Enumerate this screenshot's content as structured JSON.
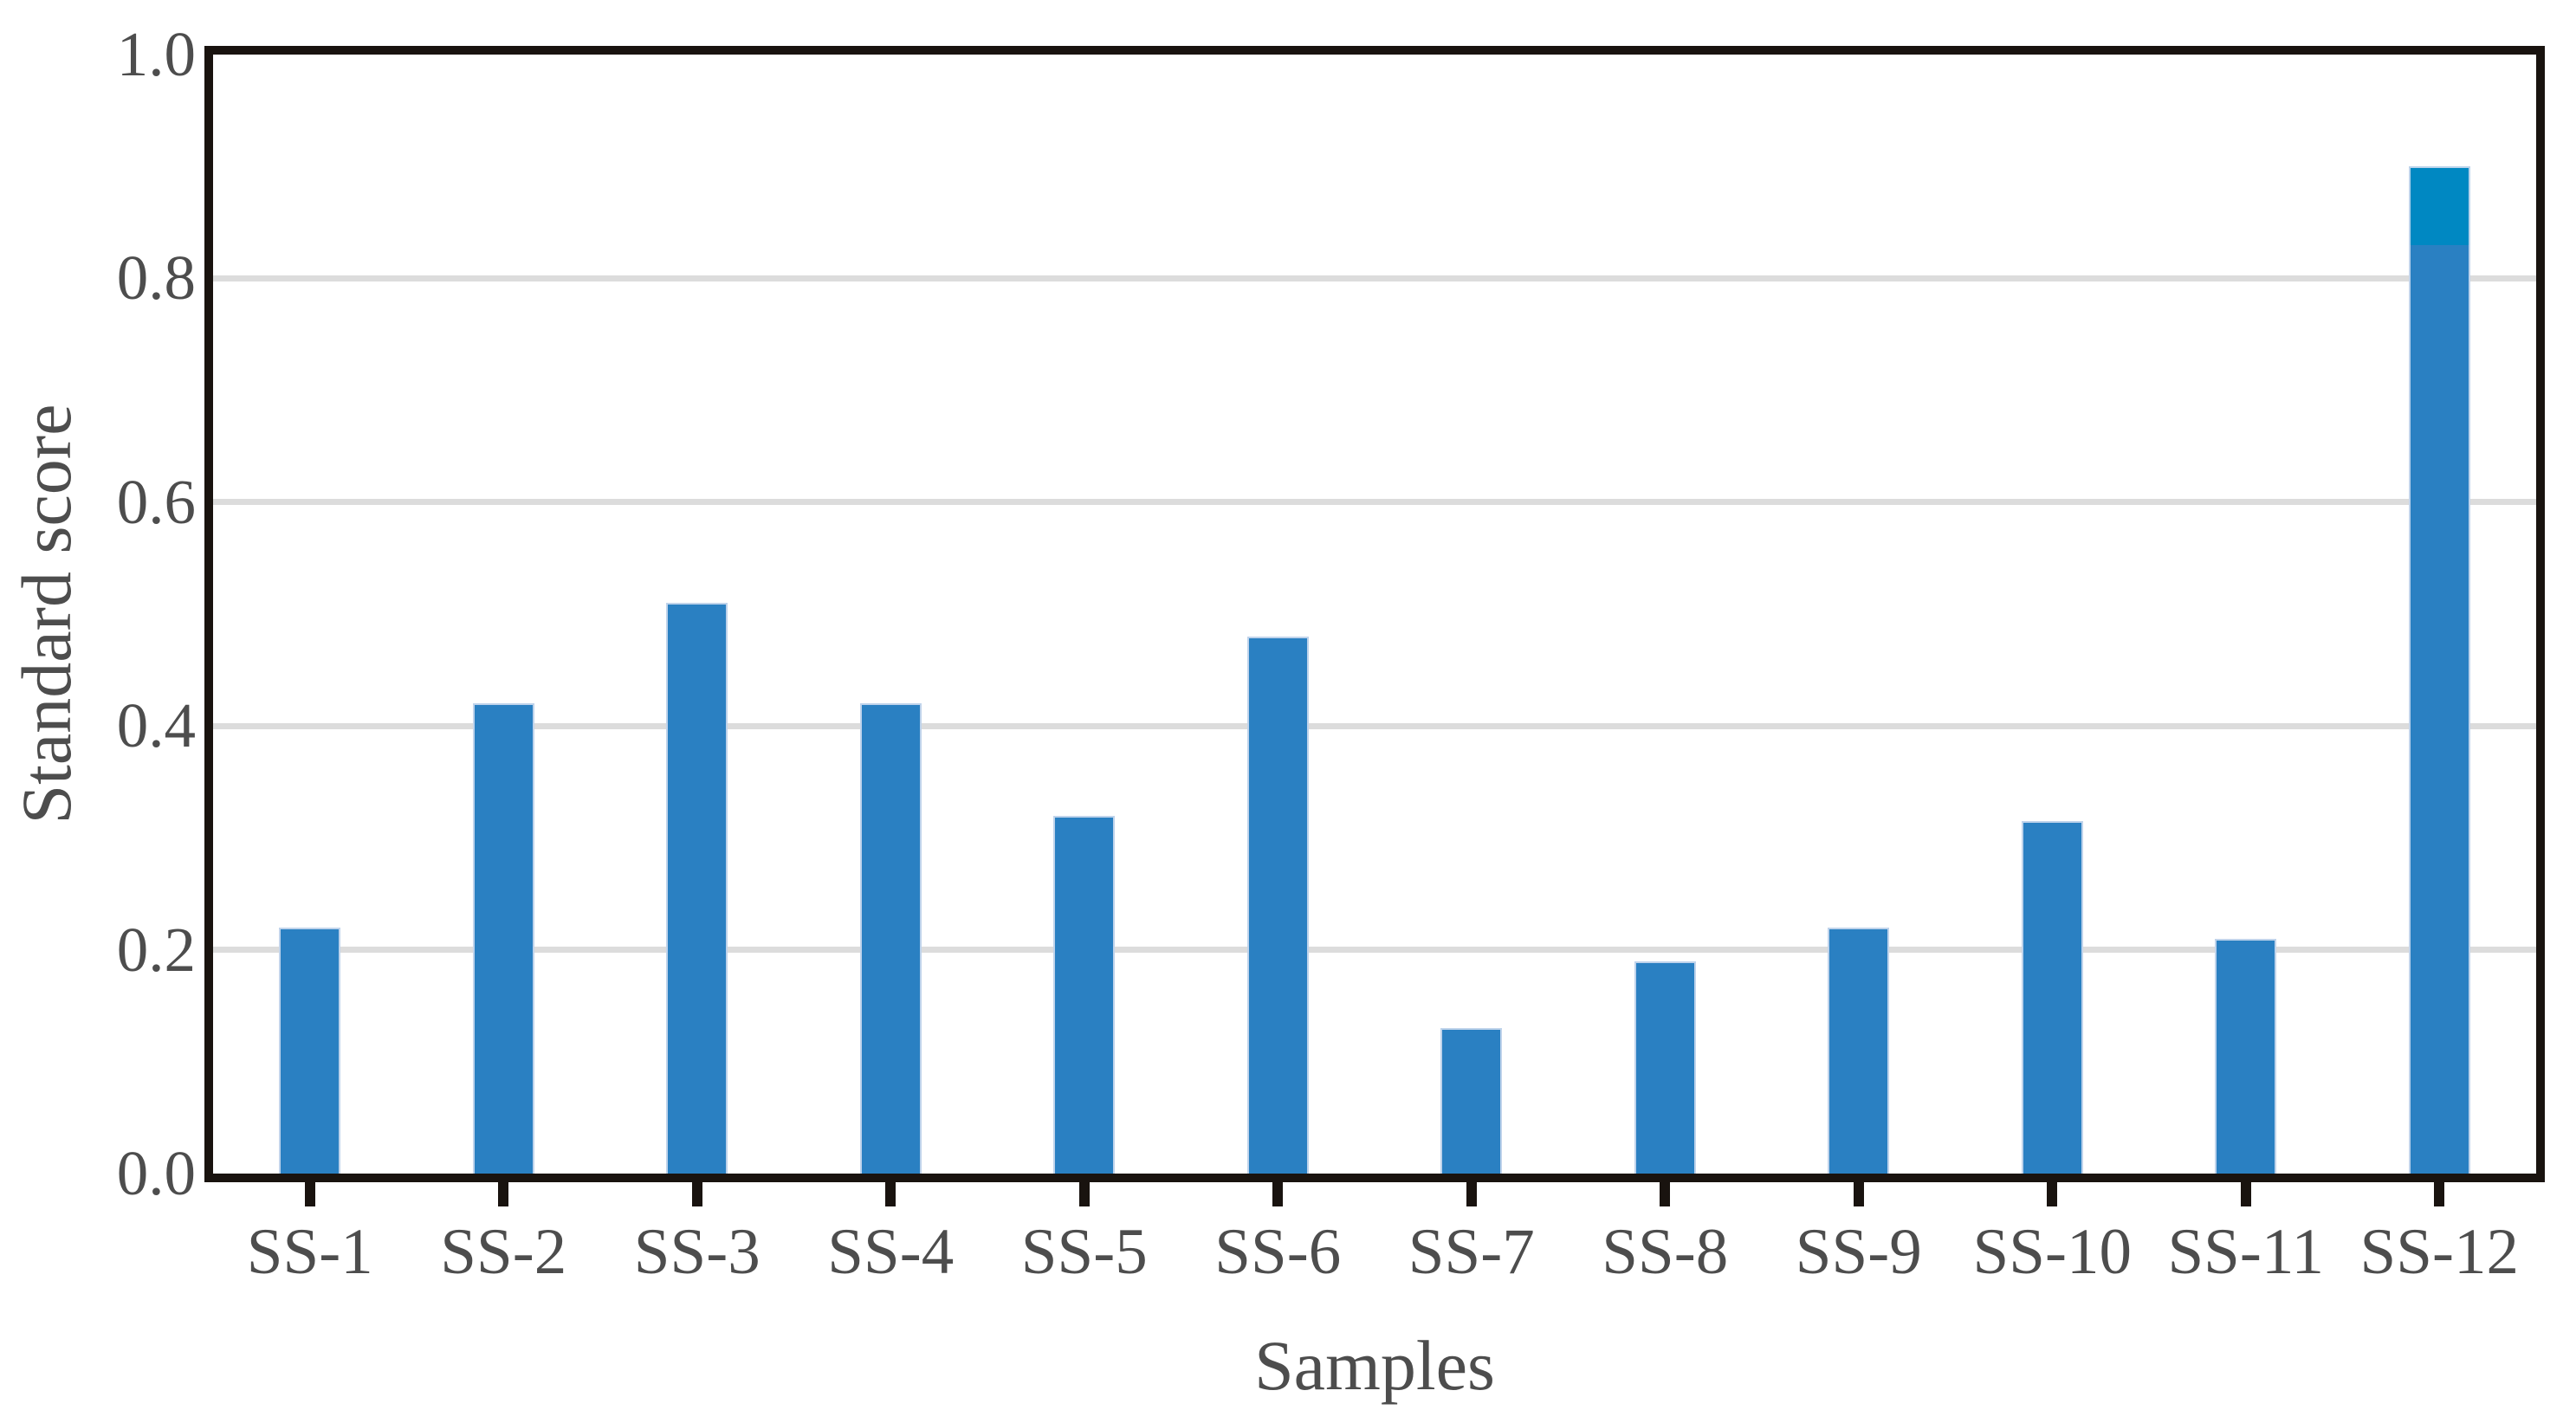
{
  "figure": {
    "background": "#ffffff",
    "text_color": "#4d4d4d",
    "spine_color": "#19130f",
    "grid_color": "#dcdcdc",
    "xlabel": "Samples",
    "ylabel": "Standard score"
  },
  "chart_data": {
    "type": "bar",
    "title": "",
    "xlabel": "Samples",
    "ylabel": "Standard score",
    "categories": [
      "SS-1",
      "SS-2",
      "SS-3",
      "SS-4",
      "SS-5",
      "SS-6",
      "SS-7",
      "SS-8",
      "SS-9",
      "SS-10",
      "SS-11",
      "SS-12"
    ],
    "values": [
      0.22,
      0.42,
      0.51,
      0.42,
      0.32,
      0.48,
      0.13,
      0.19,
      0.22,
      0.315,
      0.21,
      0.9
    ],
    "bar_color": "#2a80c2",
    "highlight_segment": {
      "category": "SS-12",
      "from": 0.83,
      "to": 0.9,
      "color": "#0088c2",
      "note": "top of SS-12 bar rendered in a different blue above 0.83"
    },
    "ylim": [
      0,
      1.0
    ],
    "yticks": [
      0.0,
      0.2,
      0.4,
      0.6,
      0.8,
      1.0
    ],
    "ytick_labels": [
      "0.0",
      "0.2",
      "0.4",
      "0.6",
      "0.8",
      "1.0"
    ],
    "grid": "horizontal",
    "gridline_values": [
      0.2,
      0.4,
      0.6,
      0.8
    ],
    "legend": "none",
    "bar_edge_color": "#cfdcf0"
  }
}
